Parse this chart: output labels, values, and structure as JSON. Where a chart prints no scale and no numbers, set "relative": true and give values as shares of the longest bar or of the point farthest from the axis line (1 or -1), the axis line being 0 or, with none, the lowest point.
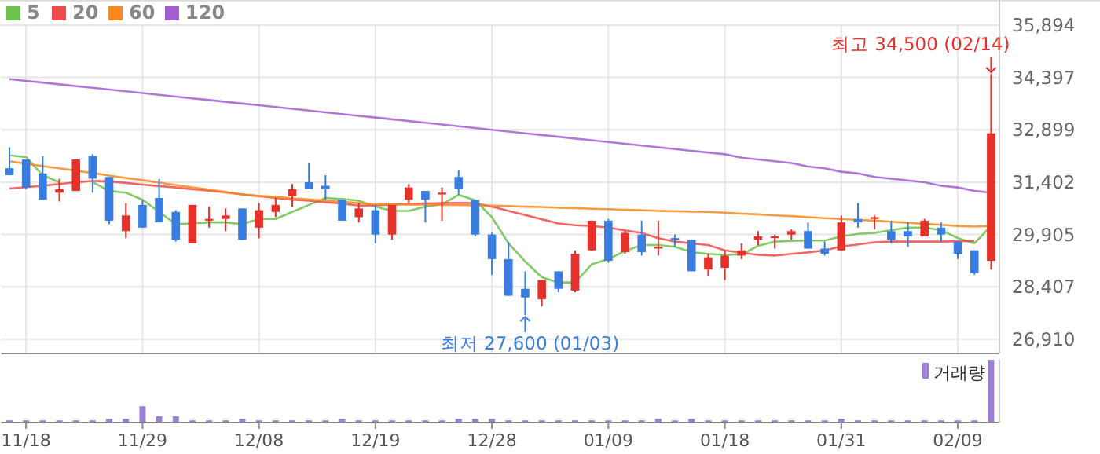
{
  "chart_data": [
    {
      "type": "candlestick",
      "categories": [
        null,
        "11/18",
        null,
        null,
        null,
        null,
        null,
        null,
        "11/29",
        null,
        null,
        null,
        null,
        null,
        null,
        "12/08",
        null,
        null,
        null,
        null,
        null,
        null,
        "12/19",
        null,
        null,
        null,
        null,
        null,
        null,
        "12/28",
        null,
        null,
        null,
        null,
        null,
        null,
        "01/09",
        null,
        null,
        null,
        null,
        null,
        null,
        "01/18",
        null,
        null,
        null,
        null,
        null,
        null,
        "01/31",
        null,
        null,
        null,
        null,
        null,
        null,
        "02/09",
        null,
        null
      ],
      "ohlc": [
        [
          31800,
          32400,
          31600,
          31600
        ],
        [
          32050,
          32050,
          31200,
          31250
        ],
        [
          31650,
          32150,
          30900,
          30900
        ],
        [
          31100,
          31500,
          30850,
          31200
        ],
        [
          31150,
          32050,
          31150,
          32050
        ],
        [
          32150,
          32200,
          31100,
          31500
        ],
        [
          31550,
          31550,
          30200,
          30300
        ],
        [
          30000,
          30800,
          29800,
          30450
        ],
        [
          30750,
          30900,
          30100,
          30100
        ],
        [
          30950,
          31500,
          30250,
          30250
        ],
        [
          30550,
          30600,
          29700,
          29750
        ],
        [
          29650,
          30750,
          29650,
          30750
        ],
        [
          30300,
          30700,
          30100,
          30350
        ],
        [
          30350,
          30650,
          30000,
          30450
        ],
        [
          30650,
          30650,
          29750,
          29750
        ],
        [
          30100,
          30800,
          29800,
          30600
        ],
        [
          30550,
          30950,
          30400,
          30750
        ],
        [
          31000,
          31350,
          30700,
          31200
        ],
        [
          31400,
          31950,
          31200,
          31200
        ],
        [
          31300,
          31600,
          30900,
          31200
        ],
        [
          30900,
          30900,
          30300,
          30300
        ],
        [
          30400,
          30800,
          30250,
          30650
        ],
        [
          30600,
          30750,
          29650,
          29900
        ],
        [
          29900,
          30750,
          29750,
          30750
        ],
        [
          30900,
          31350,
          30800,
          31250
        ],
        [
          31150,
          31150,
          30250,
          30900
        ],
        [
          31050,
          31250,
          30300,
          31100
        ],
        [
          31550,
          31750,
          31050,
          31200
        ],
        [
          30900,
          30900,
          29850,
          29900
        ],
        [
          29900,
          29950,
          28750,
          29200
        ],
        [
          29200,
          29700,
          28150,
          28150
        ],
        [
          28350,
          28850,
          27600,
          28100
        ],
        [
          28050,
          28600,
          27850,
          28600
        ],
        [
          28850,
          28850,
          28250,
          28350
        ],
        [
          28300,
          29450,
          28250,
          29350
        ],
        [
          29450,
          30300,
          29450,
          30300
        ],
        [
          30300,
          30350,
          29100,
          29150
        ],
        [
          29400,
          30000,
          29350,
          29950
        ],
        [
          29900,
          30300,
          29300,
          29400
        ],
        [
          29500,
          30300,
          29300,
          29550
        ],
        [
          29800,
          29900,
          29550,
          29750
        ],
        [
          29750,
          29750,
          28850,
          28850
        ],
        [
          28900,
          29350,
          28700,
          29250
        ],
        [
          28950,
          29450,
          28600,
          29300
        ],
        [
          29300,
          29650,
          29200,
          29450
        ],
        [
          29750,
          30000,
          29600,
          29850
        ],
        [
          29800,
          29900,
          29500,
          29850
        ],
        [
          29900,
          30050,
          29750,
          30000
        ],
        [
          30000,
          30250,
          29500,
          29500
        ],
        [
          29500,
          29700,
          29300,
          29350
        ],
        [
          29450,
          30450,
          29450,
          30250
        ],
        [
          30350,
          30800,
          30100,
          30250
        ],
        [
          30350,
          30450,
          30050,
          30400
        ],
        [
          30000,
          30300,
          29650,
          29750
        ],
        [
          30000,
          30250,
          29550,
          29850
        ],
        [
          29850,
          30350,
          29850,
          30300
        ],
        [
          30100,
          30250,
          29700,
          29900
        ],
        [
          29700,
          29700,
          29200,
          29350
        ],
        [
          29450,
          29450,
          28750,
          28800
        ],
        [
          29150,
          34500,
          28900,
          32800
        ]
      ],
      "colors": [
        "#3a7de0",
        "#3a7de0",
        "#3a7de0",
        "#e5312a",
        "#e5312a",
        "#3a7de0",
        "#3a7de0",
        "#e5312a",
        "#3a7de0",
        "#3a7de0",
        "#3a7de0",
        "#e5312a",
        "#e5312a",
        "#e5312a",
        "#3a7de0",
        "#e5312a",
        "#e5312a",
        "#e5312a",
        "#3a7de0",
        "#3a7de0",
        "#3a7de0",
        "#e5312a",
        "#3a7de0",
        "#e5312a",
        "#e5312a",
        "#3a7de0",
        "#e5312a",
        "#3a7de0",
        "#3a7de0",
        "#3a7de0",
        "#3a7de0",
        "#3a7de0",
        "#e5312a",
        "#3a7de0",
        "#e5312a",
        "#e5312a",
        "#3a7de0",
        "#e5312a",
        "#3a7de0",
        "#e5312a",
        "#3a7de0",
        "#3a7de0",
        "#e5312a",
        "#e5312a",
        "#e5312a",
        "#e5312a",
        "#e5312a",
        "#e5312a",
        "#3a7de0",
        "#3a7de0",
        "#e5312a",
        "#3a7de0",
        "#e5312a",
        "#3a7de0",
        "#3a7de0",
        "#e5312a",
        "#3a7de0",
        "#3a7de0",
        "#3a7de0",
        "#e5312a"
      ],
      "series": [
        {
          "type": "line",
          "name": "5",
          "color": "#6cc24a",
          "values": [
            32170,
            32120,
            31600,
            31400,
            null,
            31400,
            31150,
            31100,
            30900,
            30550,
            30200,
            30220,
            30250,
            30250,
            30200,
            30350,
            30350,
            30550,
            30750,
            30950,
            30920,
            30870,
            30700,
            30580,
            30580,
            30700,
            30770,
            31040,
            30880,
            30400,
            29650,
            29130,
            28680,
            28530,
            28530,
            29050,
            29200,
            29430,
            29600,
            29600,
            29550,
            29400,
            29350,
            29320,
            29330,
            29580,
            29700,
            29720,
            29730,
            29730,
            29850,
            29920,
            29950,
            30030,
            30100,
            30100,
            30030,
            29800,
            29650,
            30150
          ]
        },
        {
          "type": "line",
          "name": "20",
          "color": "#ef4b4b",
          "values": [
            31220,
            31260,
            31300,
            31350,
            31400,
            31440,
            31420,
            31380,
            31330,
            31290,
            31250,
            31200,
            31160,
            31110,
            31050,
            31000,
            30950,
            30900,
            30870,
            30830,
            30790,
            30730,
            30740,
            30760,
            30780,
            30790,
            30800,
            30810,
            30800,
            30700,
            30580,
            30460,
            30340,
            30220,
            30170,
            30150,
            30100,
            30020,
            29950,
            29800,
            29700,
            29650,
            29600,
            29450,
            29380,
            29320,
            29300,
            29350,
            29390,
            29450,
            29560,
            29620,
            29680,
            29700,
            29700,
            29700,
            29700,
            29710,
            29720,
            null
          ]
        },
        {
          "type": "line",
          "name": "60",
          "color": "#f7891f",
          "values": [
            32000,
            31930,
            31860,
            31800,
            31730,
            31660,
            31590,
            31520,
            31460,
            31390,
            31320,
            31250,
            31190,
            31120,
            31050,
            31010,
            30980,
            30940,
            30910,
            30870,
            30840,
            30800,
            30770,
            30770,
            30760,
            30760,
            30750,
            30750,
            30740,
            30730,
            30720,
            30700,
            30690,
            30670,
            30660,
            30640,
            30630,
            30610,
            30600,
            30580,
            30570,
            30560,
            30550,
            30530,
            30500,
            30480,
            30450,
            30430,
            30400,
            30370,
            30350,
            30320,
            30300,
            30270,
            30240,
            30210,
            30180,
            30150,
            30130,
            30150
          ]
        },
        {
          "type": "line",
          "name": "120",
          "color": "#a25fd0",
          "values": [
            34350,
            34300,
            34250,
            34200,
            34150,
            34100,
            34050,
            34000,
            33950,
            33900,
            33850,
            33800,
            33750,
            33700,
            33650,
            33600,
            33550,
            33500,
            33450,
            33400,
            33350,
            33300,
            33250,
            33200,
            33150,
            33100,
            33050,
            33000,
            32950,
            32900,
            32850,
            32800,
            32750,
            32700,
            32650,
            32600,
            32550,
            32500,
            32450,
            32400,
            32350,
            32300,
            32250,
            32200,
            32100,
            32050,
            32000,
            31950,
            31850,
            31800,
            31700,
            31650,
            31550,
            31500,
            31450,
            31400,
            31300,
            31250,
            31150,
            31100
          ]
        }
      ],
      "ylim": [
        26500,
        35894
      ],
      "yticks": [
        {
          "value": 26910,
          "label": "26,910"
        },
        {
          "value": 28407,
          "label": "28,407"
        },
        {
          "value": 29905,
          "label": "29,905"
        },
        {
          "value": 31402,
          "label": "31,402"
        },
        {
          "value": 32899,
          "label": "32,899"
        },
        {
          "value": 34397,
          "label": "34,397"
        },
        {
          "value": 35894,
          "label": "35,894"
        }
      ],
      "grid": true,
      "legend": "top left",
      "annotations": [
        "최고 34,500 (02/14)",
        "최저 27,600 (01/03)"
      ]
    },
    {
      "type": "bar",
      "relative": true,
      "categories": [
        null,
        null,
        null,
        null,
        null,
        null,
        null,
        null,
        null,
        null,
        null,
        null,
        null,
        null,
        null,
        null,
        null,
        null,
        null,
        null,
        null,
        null,
        null,
        null,
        null,
        null,
        null,
        null,
        null,
        null,
        null,
        null,
        null,
        null,
        null,
        null,
        null,
        null,
        null,
        null,
        null,
        null,
        null,
        null,
        null,
        null,
        null,
        null,
        null,
        null,
        null,
        null,
        null,
        null,
        null,
        null,
        null,
        null,
        null,
        null
      ],
      "series": [
        {
          "name": "거래량",
          "color": "#9b7fd4",
          "values": [
            0.035,
            0.035,
            0.035,
            0.035,
            0.035,
            0.035,
            0.06,
            0.06,
            0.26,
            0.1,
            0.1,
            0.035,
            0.035,
            0.035,
            0.06,
            0.035,
            0.035,
            0.035,
            0.035,
            0.035,
            0.06,
            0.035,
            0.035,
            0.035,
            0.035,
            0.035,
            0.035,
            0.06,
            0.06,
            0.06,
            0.035,
            0.035,
            0.035,
            0.035,
            0.035,
            0.035,
            0.035,
            0.035,
            0.035,
            0.06,
            0.035,
            0.06,
            0.035,
            0.035,
            0.035,
            0.035,
            0.035,
            0.035,
            0.035,
            0.035,
            0.06,
            0.035,
            0.035,
            0.035,
            0.035,
            0.035,
            0.035,
            0.035,
            0.035,
            1
          ]
        }
      ],
      "legend": "top right"
    }
  ]
}
